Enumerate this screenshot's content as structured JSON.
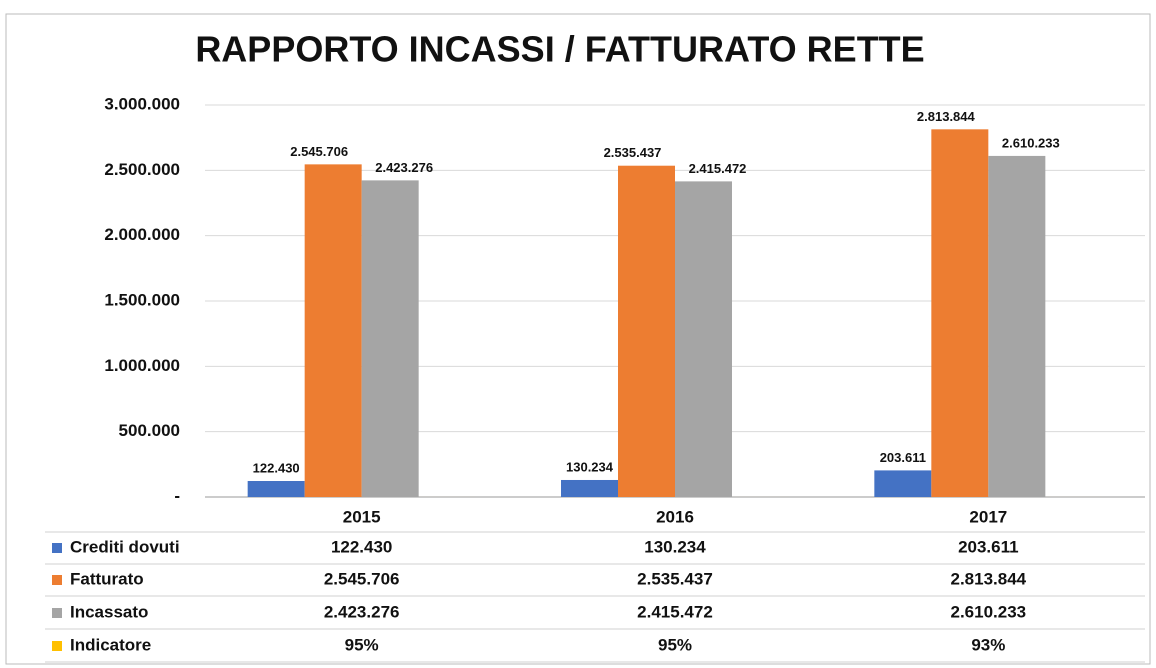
{
  "chart_data": {
    "type": "bar",
    "title": "RAPPORTO INCASSI / FATTURATO RETTE",
    "categories": [
      "2015",
      "2016",
      "2017"
    ],
    "series": [
      {
        "name": "Crediti dovuti",
        "color": "#4472c4",
        "data_labels": true,
        "values": [
          122430,
          130234,
          203611
        ],
        "value_labels": [
          "122.430",
          "130.234",
          "203.611"
        ]
      },
      {
        "name": "Fatturato",
        "color": "#ed7d31",
        "data_labels": true,
        "values": [
          2545706,
          2535437,
          2813844
        ],
        "value_labels": [
          "2.545.706",
          "2.535.437",
          "2.813.844"
        ]
      },
      {
        "name": "Incassato",
        "color": "#a5a5a5",
        "data_labels": true,
        "values": [
          2423276,
          2415472,
          2610233
        ],
        "value_labels": [
          "2.423.276",
          "2.415.472",
          "2.610.233"
        ]
      },
      {
        "name": "Indicatore",
        "color": "#ffc000",
        "data_labels": false,
        "values": [
          95,
          95,
          93
        ],
        "value_labels": [
          "95%",
          "95%",
          "93%"
        ]
      }
    ],
    "ylim": [
      0,
      3000000
    ],
    "yticks": [
      {
        "value": 0,
        "label": "-"
      },
      {
        "value": 500000,
        "label": "500.000"
      },
      {
        "value": 1000000,
        "label": "1.000.000"
      },
      {
        "value": 1500000,
        "label": "1.500.000"
      },
      {
        "value": 2000000,
        "label": "2.000.000"
      },
      {
        "value": 2500000,
        "label": "2.500.000"
      },
      {
        "value": 3000000,
        "label": "3.000.000"
      }
    ],
    "grid": true
  }
}
